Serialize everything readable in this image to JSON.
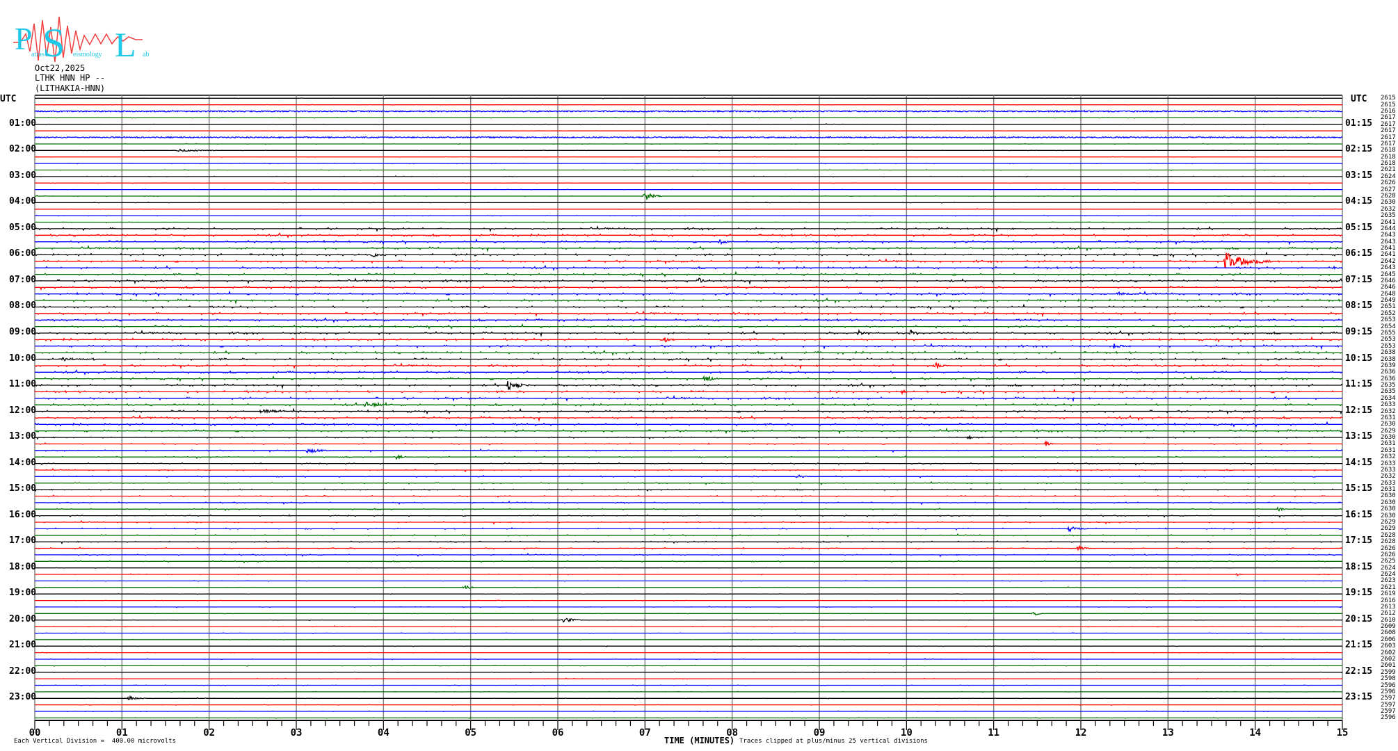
{
  "logo": {
    "text": "Patras Seismology Lab",
    "letters": [
      "P",
      "S",
      "L"
    ],
    "small": [
      "atras",
      "eismology",
      "ab"
    ],
    "color": "#1ec8e6",
    "wave_color": "#f04040"
  },
  "header": {
    "date": "Oct22,2025",
    "station": "LTHK HNN HP --",
    "site": "(LITHAKIA-HNN)"
  },
  "utc_left": "UTC",
  "utc_right": "UTC",
  "left_labels": [
    "01:00",
    "02:00",
    "03:00",
    "04:00",
    "05:00",
    "06:00",
    "07:00",
    "08:00",
    "09:00",
    "10:00",
    "11:00",
    "12:00",
    "13:00",
    "14:00",
    "15:00",
    "16:00",
    "17:00",
    "18:00",
    "19:00",
    "20:00",
    "21:00",
    "22:00",
    "23:00"
  ],
  "right_labels": [
    "01:15",
    "02:15",
    "03:15",
    "04:15",
    "05:15",
    "06:15",
    "07:15",
    "08:15",
    "09:15",
    "10:15",
    "11:15",
    "12:15",
    "13:15",
    "14:15",
    "15:15",
    "16:15",
    "17:15",
    "18:15",
    "19:15",
    "20:15",
    "21:15",
    "22:15",
    "23:15"
  ],
  "right_values": [
    "2615",
    "2615",
    "2616",
    "2617",
    "2617",
    "2617",
    "2617",
    "2617",
    "2618",
    "2618",
    "2618",
    "2621",
    "2624",
    "2626",
    "2627",
    "2628",
    "2630",
    "2632",
    "2635",
    "2641",
    "2644",
    "2643",
    "2643",
    "2641",
    "2641",
    "2642",
    "2643",
    "2645",
    "2646",
    "2646",
    "2648",
    "2649",
    "2651",
    "2652",
    "2653",
    "2654",
    "2655",
    "2653",
    "2653",
    "2638",
    "2638",
    "2639",
    "2636",
    "2636",
    "2635",
    "2635",
    "2634",
    "2633",
    "2632",
    "2631",
    "2630",
    "2629",
    "2630",
    "2631",
    "2631",
    "2632",
    "2633",
    "2633",
    "2632",
    "2633",
    "2631",
    "2630",
    "2630",
    "2630",
    "2630",
    "2629",
    "2629",
    "2628",
    "2628",
    "2626",
    "2626",
    "2625",
    "2624",
    "2624",
    "2623",
    "2621",
    "2619",
    "2616",
    "2613",
    "2612",
    "2610",
    "2609",
    "2608",
    "2606",
    "2603",
    "2602",
    "2602",
    "2601",
    "2599",
    "2598",
    "2596",
    "2596",
    "2597",
    "2597",
    "2597",
    "2596"
  ],
  "footer": {
    "division": "Each Vertical Division =  400.00 microvolts",
    "xlabel": "TIME (MINUTES)",
    "clip_note": "Traces clipped at plus/minus 25 vertical divisions"
  },
  "chart_data": {
    "type": "line",
    "title": "",
    "xlabel": "TIME (MINUTES)",
    "xlim": [
      0,
      15
    ],
    "x_ticks": [
      "00",
      "01",
      "02",
      "03",
      "04",
      "05",
      "06",
      "07",
      "08",
      "09",
      "10",
      "11",
      "12",
      "13",
      "14",
      "15"
    ],
    "rows": 96,
    "row_minutes": 15,
    "trace_colors": [
      "#000000",
      "#ff0000",
      "#0000ff",
      "#007000"
    ],
    "grid_color": "#808080",
    "grid": true,
    "events": [
      {
        "row": 25,
        "minute": 13.66,
        "amp": 12,
        "dur": 0.55
      },
      {
        "row": 44,
        "minute": 5.43,
        "amp": 8,
        "dur": 0.25
      },
      {
        "row": 15,
        "minute": 7.0,
        "amp": 6,
        "dur": 0.2
      },
      {
        "row": 41,
        "minute": 10.34,
        "amp": 5,
        "dur": 0.15
      },
      {
        "row": 37,
        "minute": 7.22,
        "amp": 5,
        "dur": 0.1
      },
      {
        "row": 80,
        "minute": 6.06,
        "amp": 5,
        "dur": 0.2
      },
      {
        "row": 75,
        "minute": 4.92,
        "amp": 4,
        "dur": 0.15
      },
      {
        "row": 43,
        "minute": 7.68,
        "amp": 5,
        "dur": 0.2
      },
      {
        "row": 47,
        "minute": 3.8,
        "amp": 4,
        "dur": 0.3
      },
      {
        "row": 24,
        "minute": 3.88,
        "amp": 4,
        "dur": 0.15
      },
      {
        "row": 22,
        "minute": 7.86,
        "amp": 4,
        "dur": 0.15
      },
      {
        "row": 54,
        "minute": 3.13,
        "amp": 4,
        "dur": 0.3
      },
      {
        "row": 55,
        "minute": 4.15,
        "amp": 4,
        "dur": 0.1
      },
      {
        "row": 58,
        "minute": 8.75,
        "amp": 3,
        "dur": 0.15
      },
      {
        "row": 63,
        "minute": 14.27,
        "amp": 4,
        "dur": 0.1
      },
      {
        "row": 66,
        "minute": 11.87,
        "amp": 4,
        "dur": 0.2
      },
      {
        "row": 69,
        "minute": 11.97,
        "amp": 4,
        "dur": 0.15
      },
      {
        "row": 53,
        "minute": 11.6,
        "amp": 4,
        "dur": 0.1
      },
      {
        "row": 38,
        "minute": 12.38,
        "amp": 4,
        "dur": 0.2
      },
      {
        "row": 28,
        "minute": 7.63,
        "amp": 4,
        "dur": 0.1
      },
      {
        "row": 30,
        "minute": 12.43,
        "amp": 3,
        "dur": 0.3
      },
      {
        "row": 79,
        "minute": 11.46,
        "amp": 4,
        "dur": 0.1
      },
      {
        "row": 73,
        "minute": 13.8,
        "amp": 3,
        "dur": 0.05
      },
      {
        "row": 52,
        "minute": 10.7,
        "amp": 3,
        "dur": 0.2
      },
      {
        "row": 92,
        "minute": 1.08,
        "amp": 3,
        "dur": 0.2
      },
      {
        "row": 8,
        "minute": 1.65,
        "amp": 2,
        "dur": 0.5
      },
      {
        "row": 36,
        "minute": 9.45,
        "amp": 4,
        "dur": 0.15
      },
      {
        "row": 36,
        "minute": 10.05,
        "amp": 5,
        "dur": 0.1
      },
      {
        "row": 40,
        "minute": 0.3,
        "amp": 3,
        "dur": 0.4
      },
      {
        "row": 45,
        "minute": 9.95,
        "amp": 3,
        "dur": 0.1
      },
      {
        "row": 48,
        "minute": 2.6,
        "amp": 3,
        "dur": 0.4
      },
      {
        "row": 26,
        "minute": 14.9,
        "amp": 3,
        "dur": 0.1
      }
    ]
  }
}
